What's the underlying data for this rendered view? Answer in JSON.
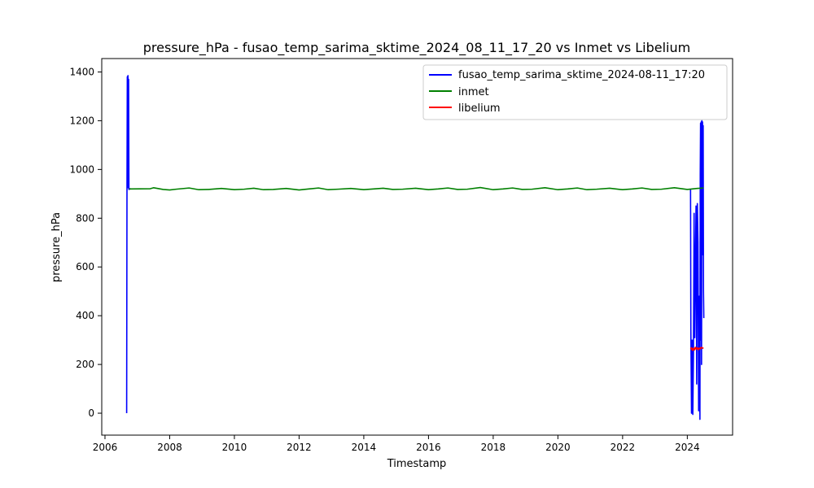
{
  "chart_data": {
    "type": "line",
    "title": "pressure_hPa - fusao_temp_sarima_sktime_2024_08_11_17_20 vs Inmet vs Libelium",
    "xlabel": "Timestamp",
    "ylabel": "pressure_hPa",
    "xlim": [
      2005.9,
      2025.4
    ],
    "ylim": [
      -90,
      1455
    ],
    "x_ticks": [
      2006,
      2008,
      2010,
      2012,
      2014,
      2016,
      2018,
      2020,
      2022,
      2024
    ],
    "x_tick_labels": [
      "2006",
      "2008",
      "2010",
      "2012",
      "2014",
      "2016",
      "2018",
      "2020",
      "2022",
      "2024"
    ],
    "y_ticks": [
      0,
      200,
      400,
      600,
      800,
      1000,
      1200,
      1400
    ],
    "y_tick_labels": [
      "0",
      "200",
      "400",
      "600",
      "800",
      "1000",
      "1200",
      "1400"
    ],
    "grid": false,
    "legend_position": "top-right",
    "series": [
      {
        "name": "fusao_temp_sarima_sktime_2024-08-11_17:20",
        "color": "#0000ff",
        "x": [
          2006.67,
          2006.68,
          2006.69,
          2006.7,
          2006.71,
          2006.72,
          2006.73,
          2006.74,
          2006.76,
          2006.78,
          2006.8,
          2024.1,
          2024.11,
          2024.13,
          2024.15,
          2024.17,
          2024.19,
          2024.21,
          2024.23,
          2024.25,
          2024.27,
          2024.29,
          2024.31,
          2024.33,
          2024.35,
          2024.37,
          2024.39,
          2024.4,
          2024.41,
          2024.42,
          2024.43,
          2024.44,
          2024.45,
          2024.46,
          2024.47,
          2024.48,
          2024.49,
          2024.5,
          2024.51
        ],
        "y": [
          0,
          920,
          1380,
          930,
          1385,
          925,
          1370,
          918,
          920,
          921,
          919,
          920,
          340,
          0,
          300,
          -5,
          250,
          820,
          310,
          600,
          850,
          120,
          860,
          700,
          10,
          480,
          -25,
          980,
          1190,
          300,
          1195,
          200,
          1200,
          900,
          1195,
          650,
          1180,
          500,
          390
        ]
      },
      {
        "name": "inmet",
        "color": "#008000",
        "x": [
          2006.75,
          2007.4,
          2007.5,
          2007.8,
          2008.0,
          2008.2,
          2008.6,
          2008.9,
          2009.2,
          2009.6,
          2010.0,
          2010.3,
          2010.6,
          2010.9,
          2011.2,
          2011.6,
          2012.0,
          2012.3,
          2012.6,
          2012.9,
          2013.2,
          2013.6,
          2014.0,
          2014.3,
          2014.6,
          2014.9,
          2015.2,
          2015.6,
          2016.0,
          2016.3,
          2016.6,
          2016.9,
          2017.2,
          2017.6,
          2018.0,
          2018.3,
          2018.6,
          2018.9,
          2019.2,
          2019.6,
          2020.0,
          2020.3,
          2020.6,
          2020.9,
          2021.2,
          2021.6,
          2022.0,
          2022.3,
          2022.6,
          2022.9,
          2023.2,
          2023.6,
          2024.0,
          2024.3,
          2024.5
        ],
        "y": [
          920,
          921,
          925,
          918,
          916,
          919,
          924,
          917,
          918,
          922,
          917,
          919,
          923,
          917,
          918,
          922,
          916,
          920,
          924,
          917,
          919,
          922,
          917,
          920,
          923,
          918,
          919,
          923,
          917,
          920,
          924,
          918,
          919,
          926,
          917,
          920,
          924,
          918,
          919,
          925,
          917,
          920,
          924,
          917,
          919,
          923,
          917,
          920,
          924,
          918,
          919,
          925,
          918,
          922,
          924
        ]
      },
      {
        "name": "libelium",
        "color": "#ff0000",
        "x": [
          2024.1,
          2024.13,
          2024.16,
          2024.19,
          2024.22,
          2024.25,
          2024.28,
          2024.31,
          2024.34,
          2024.37,
          2024.4,
          2024.43,
          2024.46,
          2024.5
        ],
        "y": [
          262,
          268,
          258,
          266,
          260,
          270,
          263,
          268,
          261,
          267,
          264,
          270,
          268,
          266
        ]
      }
    ]
  }
}
